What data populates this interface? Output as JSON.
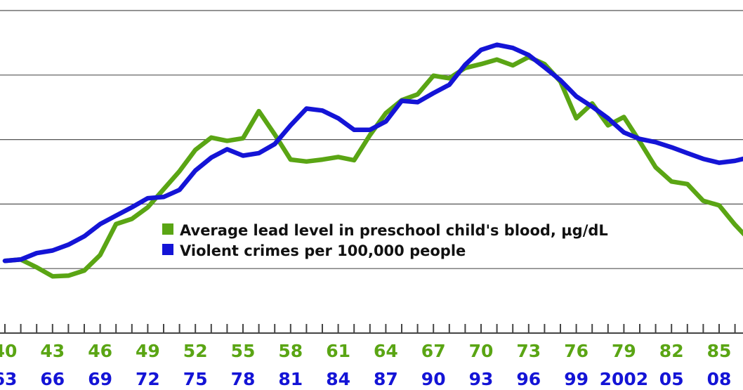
{
  "chart_data": {
    "type": "line",
    "title": "",
    "xlabel": "",
    "ylabel": "",
    "grid": true,
    "legend_placement": "center",
    "colors": {
      "lead": "#5aa514",
      "crime": "#1414d6",
      "grid": "#555555"
    },
    "x_lead": [
      1940,
      1941,
      1942,
      1943,
      1944,
      1945,
      1946,
      1947,
      1948,
      1949,
      1950,
      1951,
      1952,
      1953,
      1954,
      1955,
      1956,
      1957,
      1958,
      1959,
      1960,
      1961,
      1962,
      1963,
      1964,
      1965,
      1966,
      1967,
      1968,
      1969,
      1970,
      1971,
      1972,
      1973,
      1974,
      1975,
      1976,
      1977,
      1978,
      1979,
      1980,
      1981,
      1982,
      1983,
      1984,
      1985,
      1986,
      1987
    ],
    "x_crime": [
      1963,
      1964,
      1965,
      1966,
      1967,
      1968,
      1969,
      1970,
      1971,
      1972,
      1973,
      1974,
      1975,
      1976,
      1977,
      1978,
      1979,
      1980,
      1981,
      1982,
      1983,
      1984,
      1985,
      1986,
      1987,
      1988,
      1989,
      1990,
      1991,
      1992,
      1993,
      1994,
      1995,
      1996,
      1997,
      1998,
      1999,
      2000,
      2001,
      2002,
      2003,
      2004,
      2005,
      2006,
      2007,
      2008,
      2009,
      2010
    ],
    "x_ticks_lead": [
      "40",
      "43",
      "46",
      "49",
      "52",
      "55",
      "58",
      "61",
      "64",
      "67",
      "70",
      "73",
      "76",
      "79",
      "82",
      "85"
    ],
    "x_ticks_crime": [
      "63",
      "66",
      "69",
      "72",
      "75",
      "78",
      "81",
      "84",
      "87",
      "90",
      "93",
      "96",
      "99",
      "2002",
      "05",
      "08"
    ],
    "ylim": [
      0,
      5
    ],
    "series": [
      {
        "name": "Average lead level in preschool child's blood, µg/dL",
        "values": [
          1.12,
          1.14,
          1.02,
          0.88,
          0.89,
          0.97,
          1.21,
          1.69,
          1.77,
          1.95,
          2.23,
          2.51,
          2.84,
          3.03,
          2.98,
          3.02,
          3.44,
          3.08,
          2.69,
          2.66,
          2.69,
          2.73,
          2.68,
          3.07,
          3.41,
          3.61,
          3.7,
          3.99,
          3.95,
          4.11,
          4.17,
          4.24,
          4.15,
          4.28,
          4.17,
          3.9,
          3.33,
          3.56,
          3.22,
          3.35,
          2.97,
          2.57,
          2.35,
          2.31,
          2.05,
          1.98,
          1.68,
          1.42
        ]
      },
      {
        "name": "Violent crimes per 100,000 people",
        "values": [
          1.12,
          1.14,
          1.24,
          1.28,
          1.37,
          1.5,
          1.69,
          1.82,
          1.95,
          2.09,
          2.11,
          2.22,
          2.52,
          2.72,
          2.85,
          2.75,
          2.79,
          2.93,
          3.22,
          3.48,
          3.45,
          3.33,
          3.15,
          3.15,
          3.28,
          3.6,
          3.58,
          3.72,
          3.85,
          4.16,
          4.39,
          4.47,
          4.42,
          4.31,
          4.12,
          3.92,
          3.67,
          3.51,
          3.33,
          3.11,
          3.01,
          2.96,
          2.88,
          2.79,
          2.7,
          2.64,
          2.67,
          2.73
        ]
      }
    ]
  }
}
